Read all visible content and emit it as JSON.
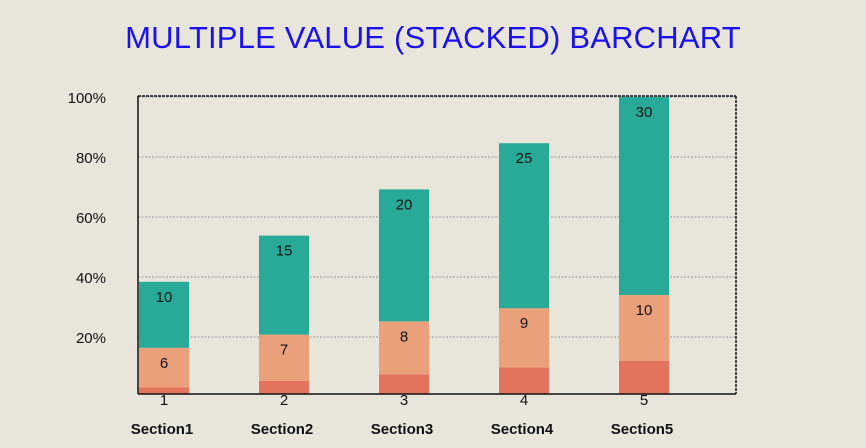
{
  "chart_data": {
    "type": "bar",
    "stacked": true,
    "title": "MULTIPLE VALUE (STACKED) BARCHART",
    "categories": [
      "Section1",
      "Section2",
      "Section3",
      "Section4",
      "Section5"
    ],
    "series": [
      {
        "values": [
          1,
          2,
          3,
          4,
          5
        ],
        "color": "#e4735d"
      },
      {
        "values": [
          6,
          7,
          8,
          9,
          10
        ],
        "color": "#eaa07b"
      },
      {
        "values": [
          10,
          15,
          20,
          25,
          30
        ],
        "color": "#29aa99"
      }
    ],
    "ytick_labels": [
      "20%",
      "40%",
      "60%",
      "80%",
      "100%"
    ],
    "grid": true,
    "legend": "none"
  }
}
